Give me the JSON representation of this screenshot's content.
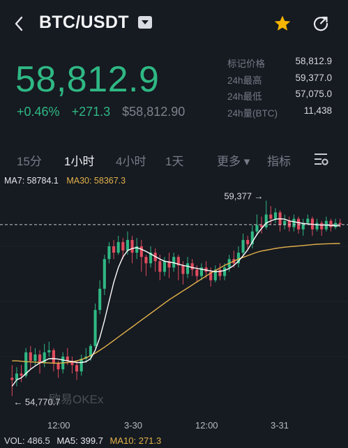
{
  "header": {
    "pair": "BTC/USDT",
    "icons": {
      "back": "back-arrow-icon",
      "dropdown": "caret-down-icon",
      "favorite": "star-icon",
      "share": "share-icon"
    },
    "favorite_color": "#f7b500"
  },
  "price": {
    "last": "58,812.9",
    "change_pct": "+0.46%",
    "change_abs": "+271.3",
    "usd_value": "$58,812.90",
    "up_color": "#2fb884"
  },
  "stats": [
    {
      "label": "标记价格",
      "value": "58,812.9"
    },
    {
      "label": "24h最高",
      "value": "59,377.0"
    },
    {
      "label": "24h最低",
      "value": "57,075.0"
    },
    {
      "label": "24h量(BTC)",
      "value": "11,438"
    }
  ],
  "tabs": [
    {
      "label": "15分",
      "active": false
    },
    {
      "label": "1小时",
      "active": true
    },
    {
      "label": "4小时",
      "active": false
    },
    {
      "label": "1天",
      "active": false
    },
    {
      "label": "更多 ▾",
      "active": false
    },
    {
      "label": "指标",
      "active": false
    }
  ],
  "indicators": {
    "ma7": "MA7: 58784.1",
    "ma30": "MA30: 58367.3",
    "ma7_color": "#ffffff",
    "ma30_color": "#e3b34a"
  },
  "chart_data": {
    "type": "candlestick",
    "interval": "1小时",
    "high_label": "59,377",
    "low_label": "54,770.7",
    "last_price": 58812.9,
    "ylim": [
      54400,
      59600
    ],
    "x_ticks": [
      "12:00",
      "3-30",
      "12:00",
      "3-31"
    ],
    "up_color": "#2fb884",
    "down_color": "#e04c5e",
    "watermark": "欧易OKEx",
    "candles": [
      [
        55200,
        55150,
        55500,
        54770.7
      ],
      [
        55150,
        55300,
        55450,
        55000
      ],
      [
        55300,
        55250,
        55500,
        55100
      ],
      [
        55250,
        55800,
        55900,
        55200
      ],
      [
        55800,
        55600,
        55950,
        55400
      ],
      [
        55600,
        55750,
        55900,
        55500
      ],
      [
        55750,
        55550,
        55850,
        55300
      ],
      [
        55550,
        55800,
        56000,
        55450
      ],
      [
        55800,
        55850,
        56050,
        55700
      ],
      [
        55850,
        55550,
        55900,
        55350
      ],
      [
        55550,
        55400,
        55600,
        55200
      ],
      [
        55400,
        55700,
        55800,
        55300
      ],
      [
        55700,
        55600,
        55900,
        55500
      ],
      [
        55600,
        55500,
        55700,
        55300
      ],
      [
        55500,
        55350,
        55600,
        55150
      ],
      [
        55350,
        55650,
        55750,
        55250
      ],
      [
        55650,
        55700,
        55900,
        55550
      ],
      [
        55700,
        55950,
        56000,
        55600
      ],
      [
        55950,
        56800,
        56950,
        55900
      ],
      [
        56800,
        57300,
        57500,
        56700
      ],
      [
        57300,
        58000,
        58100,
        57150
      ],
      [
        58000,
        58300,
        58400,
        57900
      ],
      [
        58300,
        58150,
        58450,
        58000
      ],
      [
        58150,
        58400,
        58550,
        58100
      ],
      [
        58400,
        58200,
        58500,
        58000
      ],
      [
        58200,
        58450,
        58650,
        58100
      ],
      [
        58450,
        58150,
        58550,
        57900
      ],
      [
        58150,
        58300,
        58500,
        58000
      ],
      [
        58300,
        58050,
        58450,
        57700
      ],
      [
        58050,
        57900,
        58100,
        57600
      ],
      [
        57900,
        58150,
        58300,
        57800
      ],
      [
        58150,
        57950,
        58250,
        57700
      ],
      [
        57950,
        57700,
        58100,
        57500
      ],
      [
        57700,
        57950,
        58050,
        57600
      ],
      [
        57950,
        57800,
        58150,
        57550
      ],
      [
        57800,
        58050,
        58150,
        57700
      ],
      [
        58050,
        57850,
        58100,
        57500
      ],
      [
        57850,
        57650,
        57950,
        57400
      ],
      [
        57650,
        57900,
        58050,
        57550
      ],
      [
        57900,
        57750,
        58000,
        57600
      ],
      [
        57750,
        57600,
        57850,
        57450
      ],
      [
        57600,
        57800,
        57900,
        57500
      ],
      [
        57800,
        57700,
        57950,
        57550
      ],
      [
        57700,
        57500,
        57800,
        57350
      ],
      [
        57500,
        57750,
        57850,
        57450
      ],
      [
        57750,
        57600,
        57900,
        57500
      ],
      [
        57600,
        57800,
        57900,
        57500
      ],
      [
        57800,
        58000,
        58100,
        57700
      ],
      [
        58000,
        57900,
        58200,
        57800
      ],
      [
        57900,
        58150,
        58300,
        57800
      ],
      [
        58150,
        58450,
        58600,
        58100
      ],
      [
        58450,
        58350,
        58550,
        58200
      ],
      [
        58350,
        58650,
        58800,
        58250
      ],
      [
        58650,
        58800,
        59050,
        58550
      ],
      [
        58800,
        58750,
        59000,
        58600
      ],
      [
        58750,
        59050,
        59377,
        58700
      ],
      [
        59050,
        58950,
        59250,
        58800
      ],
      [
        58950,
        59100,
        59200,
        58850
      ],
      [
        59100,
        58800,
        59150,
        58650
      ],
      [
        58800,
        58900,
        59050,
        58700
      ],
      [
        58900,
        58750,
        59000,
        58650
      ],
      [
        58750,
        58950,
        59050,
        58650
      ],
      [
        58950,
        58700,
        59000,
        58600
      ],
      [
        58700,
        58850,
        58950,
        58550
      ],
      [
        58850,
        58950,
        59050,
        58800
      ],
      [
        58950,
        58700,
        59000,
        58550
      ],
      [
        58700,
        58850,
        58950,
        58650
      ],
      [
        58850,
        58700,
        58900,
        58550
      ],
      [
        58700,
        58900,
        59000,
        58650
      ],
      [
        58900,
        58750,
        58950,
        58650
      ],
      [
        58750,
        58850,
        58950,
        58700
      ],
      [
        58850,
        58812.9,
        58950,
        58750
      ]
    ],
    "ma7": [
      55000,
      55150,
      55200,
      55300,
      55400,
      55480,
      55550,
      55600,
      55650,
      55650,
      55640,
      55620,
      55600,
      55580,
      55560,
      55560,
      55580,
      55650,
      55850,
      56150,
      56550,
      57000,
      57450,
      57800,
      58050,
      58200,
      58250,
      58270,
      58230,
      58180,
      58120,
      58060,
      58000,
      57950,
      57930,
      57910,
      57880,
      57850,
      57830,
      57800,
      57780,
      57760,
      57740,
      57720,
      57700,
      57710,
      57730,
      57780,
      57850,
      57950,
      58080,
      58220,
      58400,
      58580,
      58720,
      58850,
      58900,
      58940,
      58950,
      58940,
      58900,
      58880,
      58860,
      58840,
      58830,
      58820,
      58810,
      58800,
      58800,
      58790,
      58785,
      58784.1
    ],
    "ma30": [
      55600,
      55600,
      55590,
      55580,
      55575,
      55570,
      55560,
      55555,
      55550,
      55545,
      55545,
      55550,
      55560,
      55575,
      55600,
      55630,
      55670,
      55720,
      55780,
      55850,
      55920,
      56000,
      56080,
      56160,
      56240,
      56320,
      56400,
      56480,
      56560,
      56640,
      56720,
      56800,
      56880,
      56960,
      57040,
      57110,
      57180,
      57250,
      57320,
      57390,
      57460,
      57530,
      57600,
      57670,
      57730,
      57790,
      57850,
      57900,
      57950,
      58000,
      58040,
      58080,
      58120,
      58160,
      58190,
      58210,
      58230,
      58250,
      58265,
      58280,
      58290,
      58300,
      58310,
      58320,
      58330,
      58340,
      58350,
      58355,
      58360,
      58362,
      58365,
      58367.3
    ]
  },
  "volume": {
    "vol": "VOL: 486.5",
    "ma5": "MA5: 399.7",
    "ma10": "MA10: 271.3"
  }
}
